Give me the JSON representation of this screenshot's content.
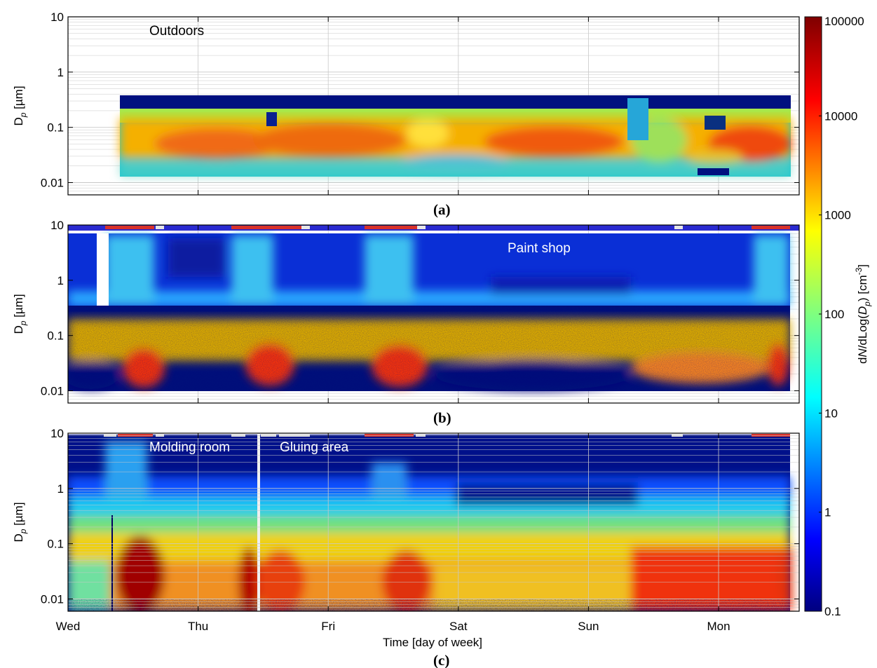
{
  "chart_data": [
    {
      "type": "heatmap",
      "panel_label": "(a)",
      "annotations": [
        "Outdoors"
      ],
      "ylabel": "D_p [µm]",
      "yscale": "log",
      "ylim": [
        0.006,
        10
      ],
      "yticks": [
        0.01,
        0.1,
        1,
        10
      ],
      "ytick_labels": [
        "0.01",
        "0.1",
        "1",
        "10"
      ],
      "x": [
        "Wed",
        "Thu",
        "Fri",
        "Sat",
        "Sun",
        "Mon"
      ],
      "data_time_range": [
        0.4,
        5.55
      ],
      "data_size_range_um": [
        0.012,
        0.35
      ],
      "description_of_values": "mode concentration ~3000-20000 cm^-3 at 0.02-0.1 µm"
    },
    {
      "type": "heatmap",
      "panel_label": "(b)",
      "annotations": [
        "Paint shop"
      ],
      "ylabel": "D_p [µm]",
      "yscale": "log",
      "ylim": [
        0.006,
        10
      ],
      "yticks": [
        0.01,
        0.1,
        1,
        10
      ],
      "ytick_labels": [
        "0.01",
        "0.1",
        "1",
        "10"
      ],
      "x": [
        "Wed",
        "Thu",
        "Fri",
        "Sat",
        "Sun",
        "Mon"
      ],
      "data_time_range": [
        0,
        5.55
      ],
      "data_size_range_um": [
        0.01,
        8
      ]
    },
    {
      "type": "heatmap",
      "panel_label": "(c)",
      "annotations": [
        "Molding room",
        "Gluing area"
      ],
      "ylabel": "D_p [µm]",
      "yscale": "log",
      "ylim": [
        0.006,
        10
      ],
      "yticks": [
        0.01,
        0.1,
        1,
        10
      ],
      "ytick_labels": [
        "0.01",
        "0.1",
        "1",
        "10"
      ],
      "xlabel": "Time [day of week]",
      "x": [
        "Wed",
        "Thu",
        "Fri",
        "Sat",
        "Sun",
        "Mon"
      ],
      "data_time_range": [
        0,
        5.55
      ],
      "data_size_range_um": [
        0.006,
        10
      ]
    }
  ],
  "colorbar": {
    "label": "dN/dLog(D_p) [cm^-3]",
    "scale": "log",
    "range": [
      0.1,
      100000
    ],
    "ticks": [
      "0.1",
      "1",
      "10",
      "100",
      "1000",
      "10000",
      "100000"
    ],
    "colormap": "jet"
  },
  "colors": {
    "dark_blue": "#00008f",
    "red_bar": "#d9322a",
    "white_bar": "#e6e6e6"
  }
}
